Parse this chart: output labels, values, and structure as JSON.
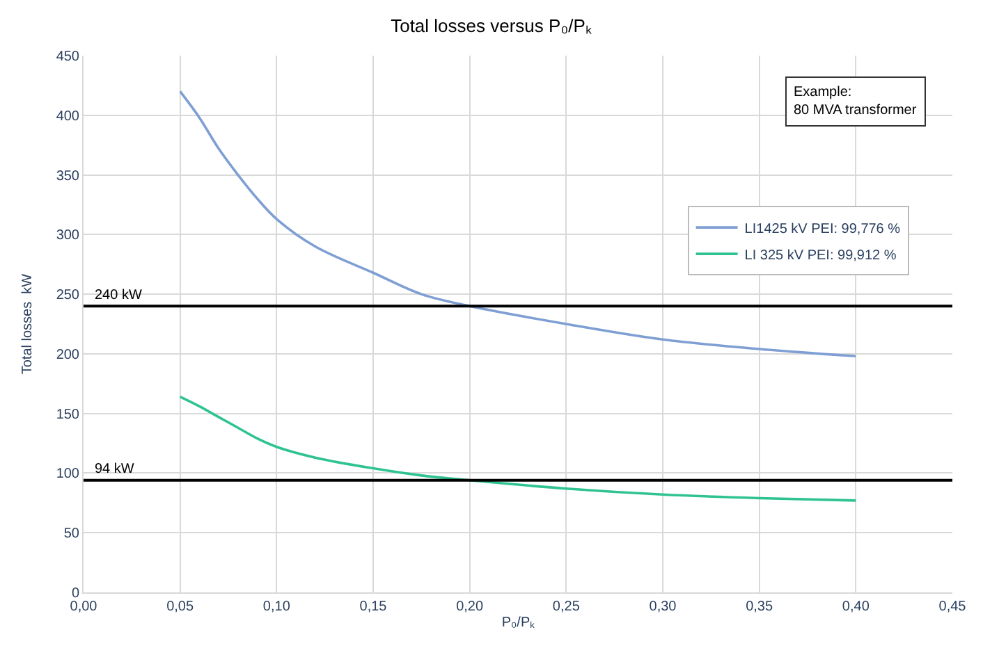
{
  "chart_data": {
    "type": "line",
    "title": "Total losses versus P₀/Pₖ",
    "xlabel": "P₀/Pₖ",
    "ylabel": "Total losses  kW",
    "x": [
      0.05,
      0.06,
      0.07,
      0.08,
      0.09,
      0.1,
      0.12,
      0.15,
      0.175,
      0.2,
      0.25,
      0.3,
      0.35,
      0.4
    ],
    "series": [
      {
        "name": "LI1425 kV PEI: 99,776 %",
        "color": "#7f9fd4",
        "values": [
          420,
          398,
          372,
          350,
          330,
          313,
          290,
          268,
          250,
          240,
          225,
          212,
          204,
          198
        ]
      },
      {
        "name": "LI 325 kV PEI: 99,912 %",
        "color": "#2fc391",
        "values": [
          164,
          156,
          147,
          138,
          129,
          122,
          113,
          104,
          98,
          94,
          87,
          82,
          79,
          77
        ]
      }
    ],
    "xlim": [
      0,
      0.45
    ],
    "xticks": [
      {
        "value": 0,
        "label": "0,00"
      },
      {
        "value": 0.05,
        "label": "0,05"
      },
      {
        "value": 0.1,
        "label": "0,10"
      },
      {
        "value": 0.15,
        "label": "0,15"
      },
      {
        "value": 0.2,
        "label": "0,20"
      },
      {
        "value": 0.25,
        "label": "0,25"
      },
      {
        "value": 0.3,
        "label": "0,30"
      },
      {
        "value": 0.35,
        "label": "0,35"
      },
      {
        "value": 0.4,
        "label": "0,40"
      },
      {
        "value": 0.45,
        "label": "0,45"
      }
    ],
    "ylim": [
      0,
      450
    ],
    "yticks": [
      0,
      50,
      100,
      150,
      200,
      250,
      300,
      350,
      400,
      450
    ],
    "ref_lines": [
      {
        "axis": "y",
        "value": 240,
        "label": "240 kW",
        "color": "#000000"
      },
      {
        "axis": "y",
        "value": 94,
        "label": "94 kW",
        "color": "#000000"
      }
    ],
    "annotations": [
      "Example:\n80 MVA transformer"
    ],
    "grid": true,
    "legend": "top right",
    "marker": "none",
    "line_style": "solid"
  }
}
